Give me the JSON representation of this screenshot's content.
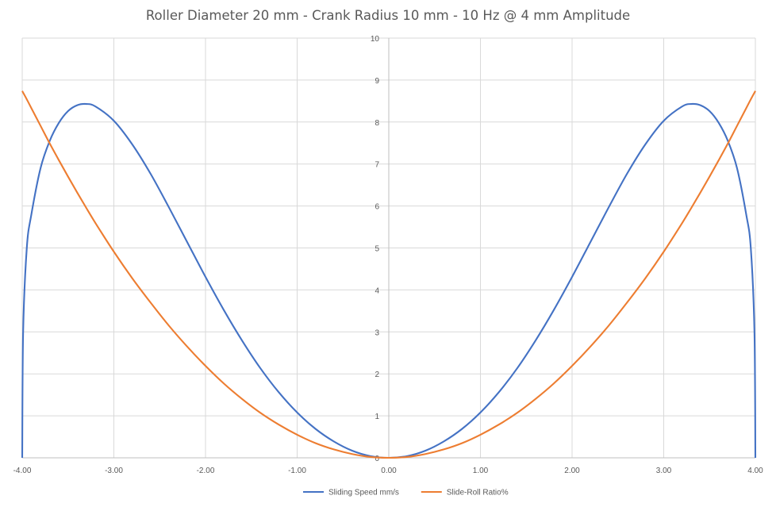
{
  "chart_data": {
    "type": "line",
    "title": "Roller Diameter 20 mm - Crank Radius 10 mm - 10 Hz @ 4 mm Amplitude",
    "xlabel": "",
    "ylabel": "",
    "xlim": [
      -4,
      4
    ],
    "ylim": [
      0,
      10
    ],
    "x_ticks": [
      -4,
      -3,
      -2,
      -1,
      0,
      1,
      2,
      3,
      4
    ],
    "x_tick_labels": [
      "-4.00",
      "-3.00",
      "-2.00",
      "-1.00",
      "0.00",
      "1.00",
      "2.00",
      "3.00",
      "4.00"
    ],
    "y_ticks": [
      0,
      1,
      2,
      3,
      4,
      5,
      6,
      7,
      8,
      9,
      10
    ],
    "y_tick_labels": [
      "0",
      "1",
      "2",
      "3",
      "4",
      "5",
      "6",
      "7",
      "8",
      "9",
      "10"
    ],
    "grid": true,
    "legend_position": "bottom",
    "x": [
      -4.0,
      -3.99,
      -3.95,
      -3.9,
      -3.8,
      -3.7,
      -3.6,
      -3.5,
      -3.4,
      -3.3,
      -3.2,
      -3.0,
      -2.8,
      -2.6,
      -2.4,
      -2.2,
      -2.0,
      -1.8,
      -1.6,
      -1.4,
      -1.2,
      -1.0,
      -0.8,
      -0.6,
      -0.4,
      -0.2,
      0.0,
      0.2,
      0.4,
      0.6,
      0.8,
      1.0,
      1.2,
      1.4,
      1.6,
      1.8,
      2.0,
      2.2,
      2.4,
      2.6,
      2.8,
      3.0,
      3.2,
      3.3,
      3.4,
      3.5,
      3.6,
      3.7,
      3.8,
      3.9,
      3.95,
      3.99,
      4.0
    ],
    "series": [
      {
        "name": "Sliding Speed mm/s",
        "color": "#4472c4",
        "values": [
          0.0,
          3.0,
          5.0,
          5.8,
          6.9,
          7.55,
          7.98,
          8.26,
          8.4,
          8.43,
          8.37,
          8.03,
          7.47,
          6.77,
          5.97,
          5.14,
          4.31,
          3.52,
          2.79,
          2.13,
          1.56,
          1.08,
          0.69,
          0.39,
          0.17,
          0.04,
          0.0,
          0.04,
          0.17,
          0.39,
          0.69,
          1.08,
          1.56,
          2.13,
          2.79,
          3.52,
          4.31,
          5.14,
          5.97,
          6.77,
          7.47,
          8.03,
          8.37,
          8.43,
          8.4,
          8.26,
          7.98,
          7.55,
          6.9,
          5.8,
          5.0,
          3.0,
          0.0
        ]
      },
      {
        "name": "Slide-Roll Ratio%",
        "color": "#ed7d31",
        "values": [
          8.74,
          8.7,
          8.54,
          8.33,
          7.91,
          7.49,
          7.09,
          6.7,
          6.32,
          5.95,
          5.59,
          4.91,
          4.28,
          3.7,
          3.15,
          2.65,
          2.19,
          1.77,
          1.4,
          1.07,
          0.79,
          0.55,
          0.35,
          0.2,
          0.09,
          0.02,
          0.0,
          0.02,
          0.09,
          0.2,
          0.35,
          0.55,
          0.79,
          1.07,
          1.4,
          1.77,
          2.19,
          2.65,
          3.15,
          3.7,
          4.28,
          4.91,
          5.59,
          5.95,
          6.32,
          6.7,
          7.09,
          7.49,
          7.91,
          8.33,
          8.54,
          8.7,
          8.74
        ]
      }
    ]
  }
}
